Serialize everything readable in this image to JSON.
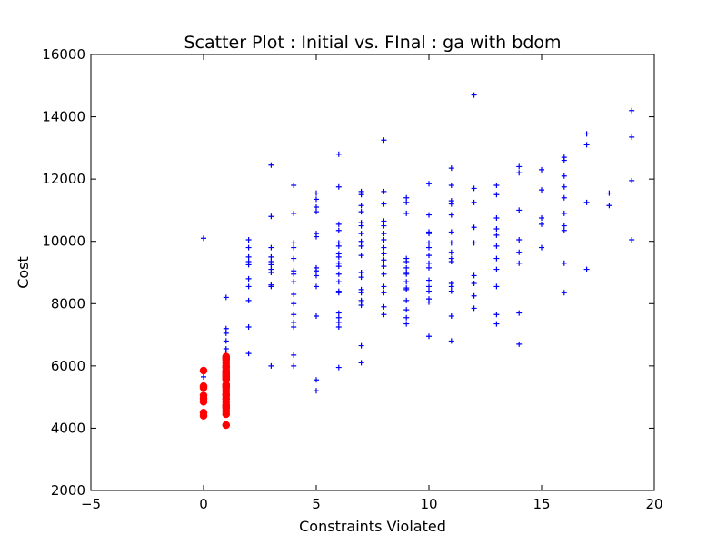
{
  "chart_data": {
    "type": "scatter",
    "title": "Scatter Plot : Initial vs. FInal : ga with bdom",
    "xlabel": "Constraints Violated",
    "ylabel": "Cost",
    "xlim": [
      -5,
      20
    ],
    "ylim": [
      2000,
      16000
    ],
    "xticks": [
      -5,
      0,
      5,
      10,
      15,
      20
    ],
    "yticks": [
      2000,
      4000,
      6000,
      8000,
      10000,
      12000,
      14000,
      16000
    ],
    "grid": false,
    "series": [
      {
        "marker": "plus",
        "color": "#0000ff",
        "points": [
          [
            0,
            10100
          ],
          [
            0,
            5650
          ],
          [
            1,
            8200
          ],
          [
            1,
            7200
          ],
          [
            1,
            7050
          ],
          [
            1,
            6800
          ],
          [
            1,
            6550
          ],
          [
            1,
            6450
          ],
          [
            1,
            6350
          ],
          [
            1,
            6250
          ],
          [
            1,
            6150
          ],
          [
            1,
            6050
          ],
          [
            1,
            5950
          ],
          [
            2,
            10050
          ],
          [
            2,
            9800
          ],
          [
            2,
            9500
          ],
          [
            2,
            9350
          ],
          [
            2,
            9250
          ],
          [
            2,
            8800
          ],
          [
            2,
            8550
          ],
          [
            2,
            8100
          ],
          [
            2,
            7250
          ],
          [
            2,
            6400
          ],
          [
            3,
            12450
          ],
          [
            3,
            10800
          ],
          [
            3,
            9800
          ],
          [
            3,
            9500
          ],
          [
            3,
            9350
          ],
          [
            3,
            9250
          ],
          [
            3,
            9100
          ],
          [
            3,
            9000
          ],
          [
            3,
            8600
          ],
          [
            3,
            8550
          ],
          [
            3,
            6000
          ],
          [
            4,
            11800
          ],
          [
            4,
            10900
          ],
          [
            4,
            9950
          ],
          [
            4,
            9800
          ],
          [
            4,
            9450
          ],
          [
            4,
            9050
          ],
          [
            4,
            8950
          ],
          [
            4,
            8700
          ],
          [
            4,
            8300
          ],
          [
            4,
            8000
          ],
          [
            4,
            7650
          ],
          [
            4,
            7400
          ],
          [
            4,
            7250
          ],
          [
            4,
            6350
          ],
          [
            4,
            6000
          ],
          [
            5,
            11550
          ],
          [
            5,
            11350
          ],
          [
            5,
            11100
          ],
          [
            5,
            10950
          ],
          [
            5,
            10250
          ],
          [
            5,
            10150
          ],
          [
            5,
            9150
          ],
          [
            5,
            9050
          ],
          [
            5,
            8900
          ],
          [
            5,
            8550
          ],
          [
            5,
            7600
          ],
          [
            5,
            5550
          ],
          [
            5,
            5200
          ],
          [
            6,
            12800
          ],
          [
            6,
            11750
          ],
          [
            6,
            10550
          ],
          [
            6,
            10350
          ],
          [
            6,
            9950
          ],
          [
            6,
            9850
          ],
          [
            6,
            9600
          ],
          [
            6,
            9500
          ],
          [
            6,
            9300
          ],
          [
            6,
            9200
          ],
          [
            6,
            8950
          ],
          [
            6,
            8700
          ],
          [
            6,
            8400
          ],
          [
            6,
            8350
          ],
          [
            6,
            7700
          ],
          [
            6,
            7550
          ],
          [
            6,
            7400
          ],
          [
            6,
            7250
          ],
          [
            6,
            5950
          ],
          [
            7,
            11600
          ],
          [
            7,
            11500
          ],
          [
            7,
            11150
          ],
          [
            7,
            10950
          ],
          [
            7,
            10600
          ],
          [
            7,
            10500
          ],
          [
            7,
            10250
          ],
          [
            7,
            10000
          ],
          [
            7,
            9850
          ],
          [
            7,
            9550
          ],
          [
            7,
            9000
          ],
          [
            7,
            8850
          ],
          [
            7,
            8450
          ],
          [
            7,
            8350
          ],
          [
            7,
            8100
          ],
          [
            7,
            8050
          ],
          [
            7,
            7950
          ],
          [
            7,
            6650
          ],
          [
            7,
            6100
          ],
          [
            8,
            13250
          ],
          [
            8,
            11600
          ],
          [
            8,
            11200
          ],
          [
            8,
            10650
          ],
          [
            8,
            10500
          ],
          [
            8,
            10250
          ],
          [
            8,
            10050
          ],
          [
            8,
            9800
          ],
          [
            8,
            9600
          ],
          [
            8,
            9400
          ],
          [
            8,
            9200
          ],
          [
            8,
            8950
          ],
          [
            8,
            8550
          ],
          [
            8,
            8350
          ],
          [
            8,
            7900
          ],
          [
            8,
            7650
          ],
          [
            9,
            11400
          ],
          [
            9,
            11250
          ],
          [
            9,
            10900
          ],
          [
            9,
            9450
          ],
          [
            9,
            9350
          ],
          [
            9,
            9150
          ],
          [
            9,
            9000
          ],
          [
            9,
            8950
          ],
          [
            9,
            8700
          ],
          [
            9,
            8500
          ],
          [
            9,
            8450
          ],
          [
            9,
            8100
          ],
          [
            9,
            7800
          ],
          [
            9,
            7550
          ],
          [
            9,
            7350
          ],
          [
            10,
            11850
          ],
          [
            10,
            10850
          ],
          [
            10,
            10300
          ],
          [
            10,
            10250
          ],
          [
            10,
            9950
          ],
          [
            10,
            9800
          ],
          [
            10,
            9550
          ],
          [
            10,
            9300
          ],
          [
            10,
            9150
          ],
          [
            10,
            8750
          ],
          [
            10,
            8550
          ],
          [
            10,
            8400
          ],
          [
            10,
            8150
          ],
          [
            10,
            8050
          ],
          [
            10,
            6950
          ],
          [
            11,
            12350
          ],
          [
            11,
            11800
          ],
          [
            11,
            11300
          ],
          [
            11,
            11200
          ],
          [
            11,
            10850
          ],
          [
            11,
            10300
          ],
          [
            11,
            9950
          ],
          [
            11,
            9650
          ],
          [
            11,
            9450
          ],
          [
            11,
            9350
          ],
          [
            11,
            8650
          ],
          [
            11,
            8550
          ],
          [
            11,
            8400
          ],
          [
            11,
            7600
          ],
          [
            11,
            6800
          ],
          [
            12,
            14700
          ],
          [
            12,
            11700
          ],
          [
            12,
            11250
          ],
          [
            12,
            10450
          ],
          [
            12,
            9950
          ],
          [
            12,
            8900
          ],
          [
            12,
            8650
          ],
          [
            12,
            8250
          ],
          [
            12,
            7850
          ],
          [
            13,
            11800
          ],
          [
            13,
            11500
          ],
          [
            13,
            10750
          ],
          [
            13,
            10400
          ],
          [
            13,
            10200
          ],
          [
            13,
            9850
          ],
          [
            13,
            9450
          ],
          [
            13,
            9100
          ],
          [
            13,
            8550
          ],
          [
            13,
            7650
          ],
          [
            13,
            7350
          ],
          [
            14,
            12400
          ],
          [
            14,
            12200
          ],
          [
            14,
            11000
          ],
          [
            14,
            10050
          ],
          [
            14,
            9650
          ],
          [
            14,
            9300
          ],
          [
            14,
            7700
          ],
          [
            14,
            6700
          ],
          [
            15,
            12300
          ],
          [
            15,
            11650
          ],
          [
            15,
            10750
          ],
          [
            15,
            10550
          ],
          [
            15,
            9800
          ],
          [
            16,
            12700
          ],
          [
            16,
            12600
          ],
          [
            16,
            12100
          ],
          [
            16,
            11750
          ],
          [
            16,
            11400
          ],
          [
            16,
            10900
          ],
          [
            16,
            10500
          ],
          [
            16,
            10350
          ],
          [
            16,
            9300
          ],
          [
            16,
            8350
          ],
          [
            17,
            13450
          ],
          [
            17,
            13100
          ],
          [
            17,
            11250
          ],
          [
            17,
            9100
          ],
          [
            18,
            11550
          ],
          [
            18,
            11150
          ],
          [
            19,
            14200
          ],
          [
            19,
            13350
          ],
          [
            19,
            11950
          ],
          [
            19,
            10050
          ]
        ]
      },
      {
        "marker": "circle",
        "color": "#ff0000",
        "points": [
          [
            0,
            5850
          ],
          [
            0,
            5350
          ],
          [
            0,
            5300
          ],
          [
            0,
            5050
          ],
          [
            0,
            4950
          ],
          [
            0,
            4850
          ],
          [
            0,
            4500
          ],
          [
            0,
            4400
          ],
          [
            1,
            6300
          ],
          [
            1,
            6250
          ],
          [
            1,
            6200
          ],
          [
            1,
            6100
          ],
          [
            1,
            6000
          ],
          [
            1,
            5950
          ],
          [
            1,
            5850
          ],
          [
            1,
            5800
          ],
          [
            1,
            5750
          ],
          [
            1,
            5700
          ],
          [
            1,
            5650
          ],
          [
            1,
            5600
          ],
          [
            1,
            5550
          ],
          [
            1,
            5400
          ],
          [
            1,
            5350
          ],
          [
            1,
            5300
          ],
          [
            1,
            5200
          ],
          [
            1,
            5100
          ],
          [
            1,
            5050
          ],
          [
            1,
            4950
          ],
          [
            1,
            4850
          ],
          [
            1,
            4750
          ],
          [
            1,
            4700
          ],
          [
            1,
            4650
          ],
          [
            1,
            4550
          ],
          [
            1,
            4450
          ],
          [
            1,
            4100
          ]
        ]
      }
    ]
  }
}
